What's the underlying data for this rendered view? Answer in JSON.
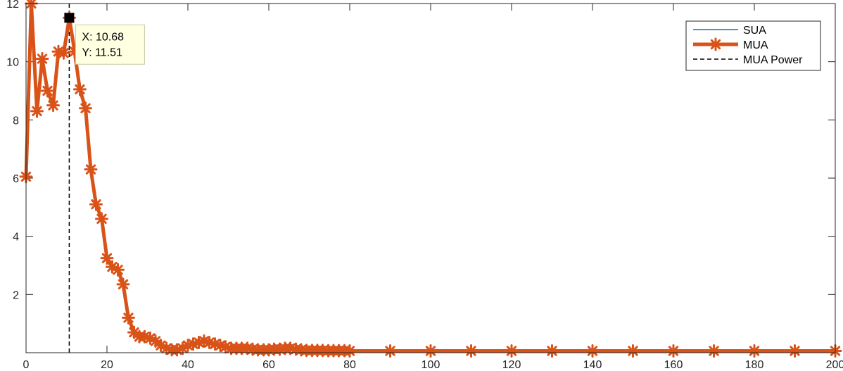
{
  "chart_data": {
    "type": "line",
    "title": "",
    "xlabel": "",
    "ylabel": "",
    "xlim": [
      0,
      200
    ],
    "ylim": [
      0,
      12
    ],
    "xticks": [
      0,
      20,
      40,
      60,
      80,
      100,
      120,
      140,
      160,
      180,
      200
    ],
    "yticks": [
      2,
      4,
      6,
      8,
      10,
      12
    ],
    "grid": false,
    "legend_position": "top-right",
    "series": [
      {
        "name": "SUA",
        "style": "solid-thin",
        "color": "#0072BD",
        "x": [],
        "y": []
      },
      {
        "name": "MUA",
        "style": "thick-line-asterisk-markers",
        "color": "#D95319",
        "x": [
          0,
          1.3,
          2.7,
          4,
          5.3,
          6.7,
          8,
          9.3,
          10.7,
          12,
          13.3,
          14.7,
          16,
          17.3,
          18.7,
          20,
          21.3,
          22.7,
          24,
          25.3,
          26.7,
          28,
          29.3,
          30.7,
          32,
          33.3,
          34.7,
          36,
          37.3,
          38.7,
          40,
          41.3,
          42.7,
          44,
          45.3,
          46.7,
          48,
          49.3,
          50.7,
          52,
          53.3,
          54.7,
          56,
          57.3,
          58.7,
          60,
          61.3,
          62.7,
          64,
          65.3,
          66.7,
          68,
          69.3,
          70.7,
          72,
          73.3,
          74.7,
          76,
          77.3,
          78.7,
          80,
          90,
          100,
          110,
          120,
          130,
          140,
          150,
          160,
          170,
          180,
          190,
          200
        ],
        "y": [
          6.05,
          12.0,
          8.3,
          10.1,
          9.0,
          8.5,
          10.35,
          10.3,
          11.51,
          10.35,
          9.05,
          8.4,
          6.3,
          5.1,
          4.6,
          3.25,
          2.95,
          2.85,
          2.35,
          1.2,
          0.7,
          0.55,
          0.55,
          0.5,
          0.4,
          0.25,
          0.15,
          0.1,
          0.1,
          0.15,
          0.25,
          0.3,
          0.35,
          0.4,
          0.35,
          0.3,
          0.25,
          0.2,
          0.15,
          0.15,
          0.15,
          0.15,
          0.12,
          0.1,
          0.1,
          0.1,
          0.12,
          0.12,
          0.15,
          0.15,
          0.12,
          0.1,
          0.08,
          0.08,
          0.08,
          0.08,
          0.07,
          0.07,
          0.07,
          0.07,
          0.06,
          0.06,
          0.06,
          0.06,
          0.06,
          0.06,
          0.06,
          0.06,
          0.06,
          0.06,
          0.06,
          0.06,
          0.06
        ]
      },
      {
        "name": "MUA Power",
        "style": "dashed-black-vertical",
        "color": "#000000",
        "x_value": 10.68
      }
    ],
    "datatip": {
      "x": 10.68,
      "y": 11.51,
      "x_label": "X: 10.68",
      "y_label": "Y: 11.51"
    }
  }
}
